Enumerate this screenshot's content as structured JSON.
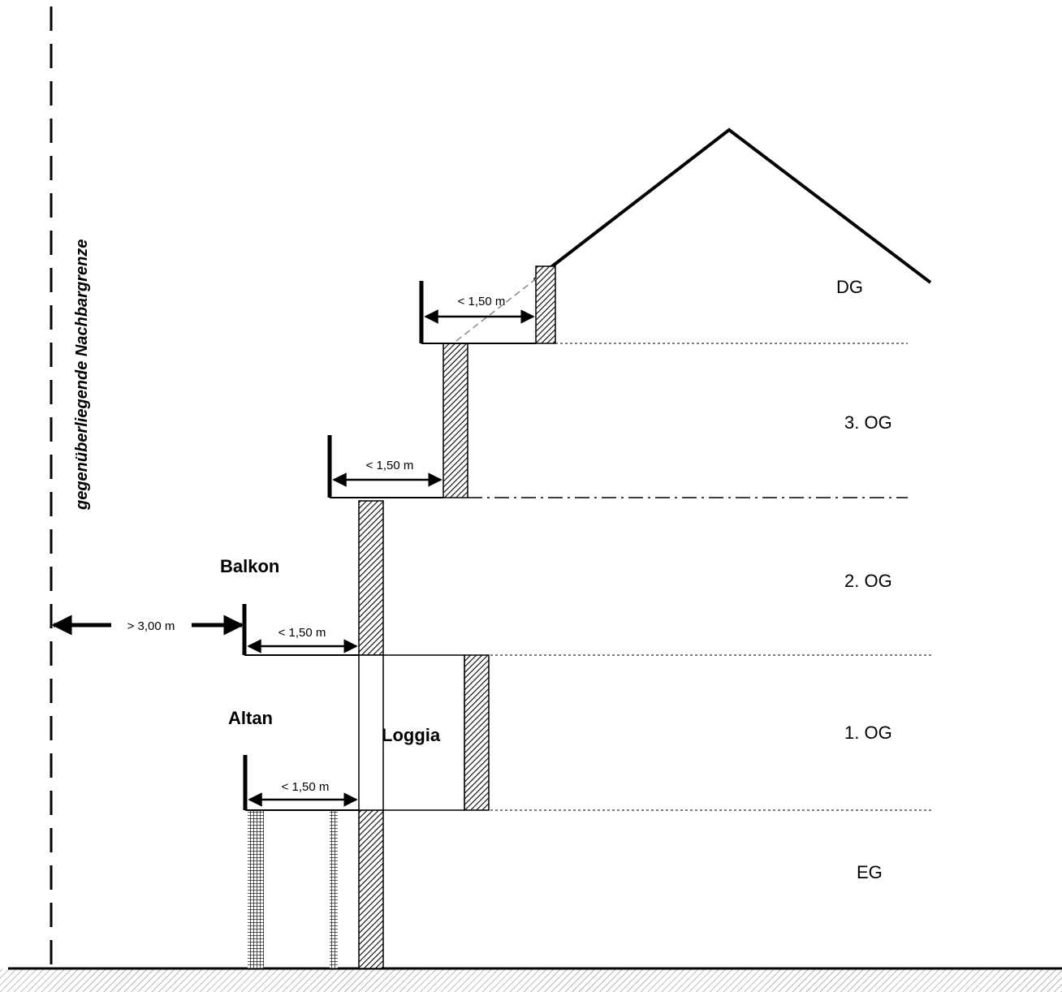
{
  "labels": {
    "boundary": "gegenüberliegende Nachbargrenze",
    "balkon": "Balkon",
    "altan": "Altan",
    "loggia": "Loggia",
    "distance_boundary": "> 3,00 m"
  },
  "floors": [
    "DG",
    "3. OG",
    "2. OG",
    "1. OG",
    "EG"
  ],
  "dimensions": {
    "dg_balcony": "< 1,50 m",
    "og3_balcony": "< 1,50 m",
    "og2_balcony": "< 1,50 m",
    "altan": "< 1,50 m"
  }
}
